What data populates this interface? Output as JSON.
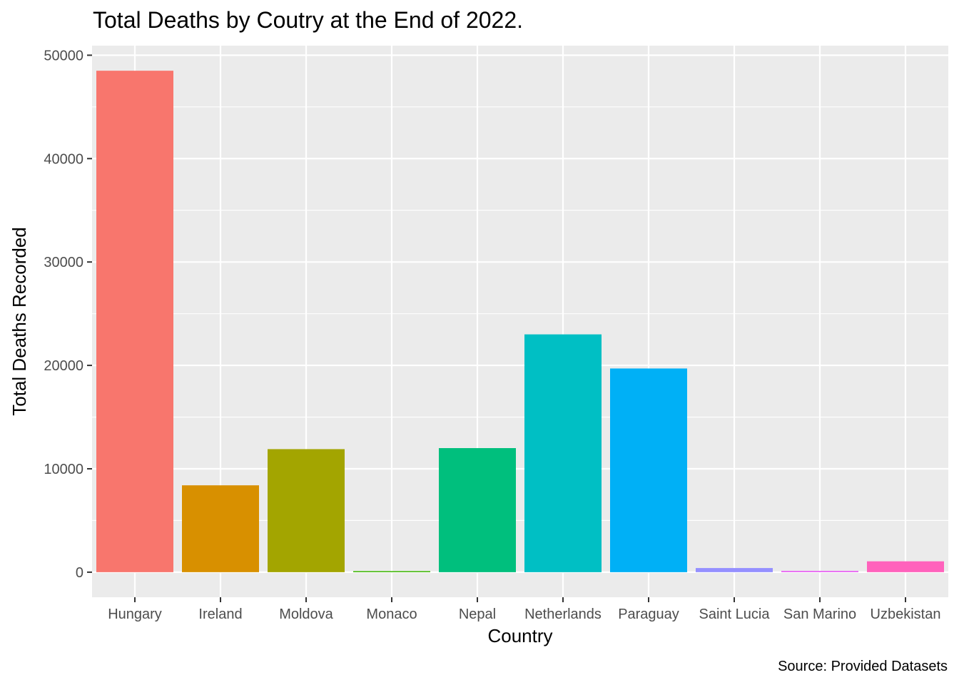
{
  "chart_data": {
    "type": "bar",
    "title": "Total Deaths by Coutry at the End of 2022.",
    "xlabel": "Country",
    "ylabel": "Total Deaths Recorded",
    "caption": "Source: Provided Datasets",
    "categories": [
      "Hungary",
      "Ireland",
      "Moldova",
      "Monaco",
      "Nepal",
      "Netherlands",
      "Paraguay",
      "Saint Lucia",
      "San Marino",
      "Uzbekistan"
    ],
    "values": [
      48500,
      8400,
      11900,
      60,
      12000,
      23000,
      19700,
      400,
      130,
      1050
    ],
    "colors": [
      "#F8766D",
      "#D89000",
      "#A3A500",
      "#39B600",
      "#00BF7D",
      "#00BFC4",
      "#00B0F6",
      "#9590FF",
      "#E76BF3",
      "#FF62BC"
    ],
    "yticks": [
      0,
      10000,
      20000,
      30000,
      40000,
      50000
    ],
    "ylim": [
      -2424,
      50924
    ],
    "grid": true,
    "legend": "none",
    "panel_background": "#EBEBEB"
  }
}
